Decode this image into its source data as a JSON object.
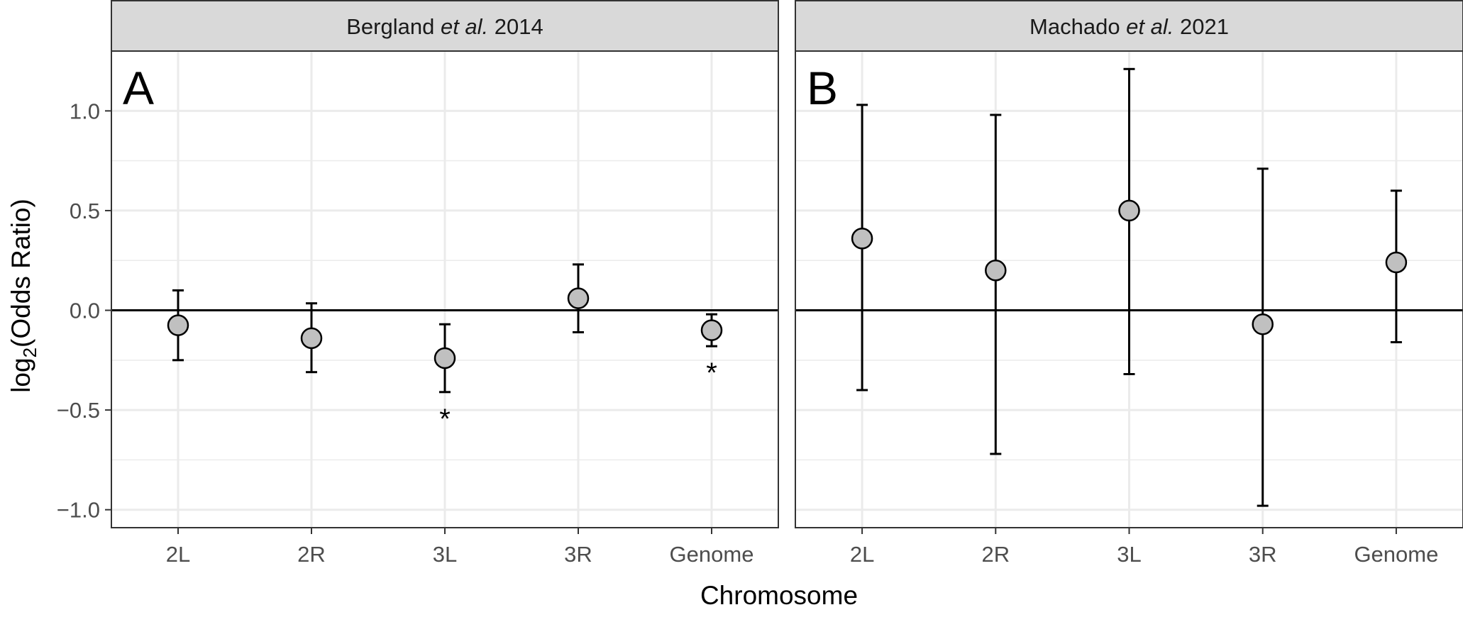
{
  "chart_data": [
    {
      "type": "scatter",
      "panel_label": "A",
      "title_parts": [
        "Bergland ",
        "et al.",
        " 2014"
      ],
      "categories": [
        "2L",
        "2R",
        "3L",
        "3R",
        "Genome"
      ],
      "values": [
        -0.075,
        -0.14,
        -0.24,
        0.06,
        -0.1
      ],
      "lower": [
        -0.25,
        -0.31,
        -0.41,
        -0.11,
        -0.18
      ],
      "upper": [
        0.1,
        0.035,
        -0.07,
        0.23,
        -0.02
      ],
      "significance": [
        "",
        "",
        "*",
        "",
        "*"
      ],
      "ylim": [
        -1.09,
        1.3
      ],
      "yticks": [
        1.0,
        0.5,
        0.0,
        -0.5,
        -1.0
      ],
      "ytick_labels": [
        "1.0",
        "0.5",
        "0.0",
        "−0.5",
        "−1.0"
      ],
      "hline": 0,
      "grid": true
    },
    {
      "type": "scatter",
      "panel_label": "B",
      "title_parts": [
        "Machado ",
        "et al.",
        " 2021"
      ],
      "categories": [
        "2L",
        "2R",
        "3L",
        "3R",
        "Genome"
      ],
      "values": [
        0.36,
        0.2,
        0.5,
        -0.07,
        0.24
      ],
      "lower": [
        -0.4,
        -0.72,
        -0.32,
        -0.98,
        -0.16
      ],
      "upper": [
        1.03,
        0.98,
        1.21,
        0.71,
        0.6
      ],
      "significance": [
        "",
        "",
        "",
        "",
        ""
      ],
      "ylim": [
        -1.09,
        1.3
      ],
      "hline": 0,
      "grid": true
    }
  ],
  "axes": {
    "xlabel": "Chromosome",
    "ylabel_prefix": "log",
    "ylabel_sub": "2",
    "ylabel_suffix": "(Odds Ratio)"
  },
  "colors": {
    "point_fill": "#c0c0c0",
    "strip_fill": "#d9d9d9",
    "grid": "#ebebeb",
    "ink": "#000000",
    "tick_text": "#4d4d4d"
  }
}
